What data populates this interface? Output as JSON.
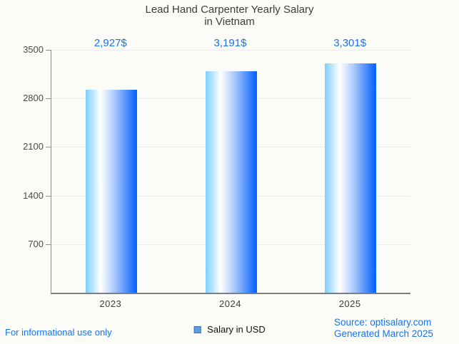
{
  "title": {
    "line1": "Lead Hand Carpenter Yearly Salary",
    "line2": "in Vietnam"
  },
  "chart_data": {
    "type": "bar",
    "title": "Lead Hand Carpenter Yearly Salary in Vietnam",
    "categories": [
      "2023",
      "2024",
      "2025"
    ],
    "values": [
      2927,
      3191,
      3301
    ],
    "value_labels": [
      "2,927$",
      "3,191$",
      "3,301$"
    ],
    "xlabel": "",
    "ylabel": "",
    "ylim": [
      0,
      3500
    ],
    "yticks": [
      700,
      1400,
      2100,
      2800,
      3500
    ],
    "legend_entries": [
      "Salary in USD"
    ],
    "legend_position": "bottom-center",
    "grid": "horizontal"
  },
  "legend": {
    "label": "Salary in USD"
  },
  "footer": {
    "left": "For informational use only",
    "source_line1": "Source: optisalary.com",
    "source_line2": "Generated March 2025"
  },
  "colors": {
    "value_label": "#1a73e8",
    "footer_text": "#1a73e8",
    "bar_gradient": [
      "#7ccffc",
      "#ffffff",
      "#a4c5fb",
      "#0b66fc"
    ],
    "bar_gradient_stops": [
      "0%",
      "29%",
      "58%",
      "97%"
    ],
    "legend_marker_fill": "#5c9ce5",
    "legend_marker_border": "#3e70b8",
    "gridline": "#ececec",
    "axis_line": "#8f8f8f",
    "title_text": "#3d3d3d"
  }
}
